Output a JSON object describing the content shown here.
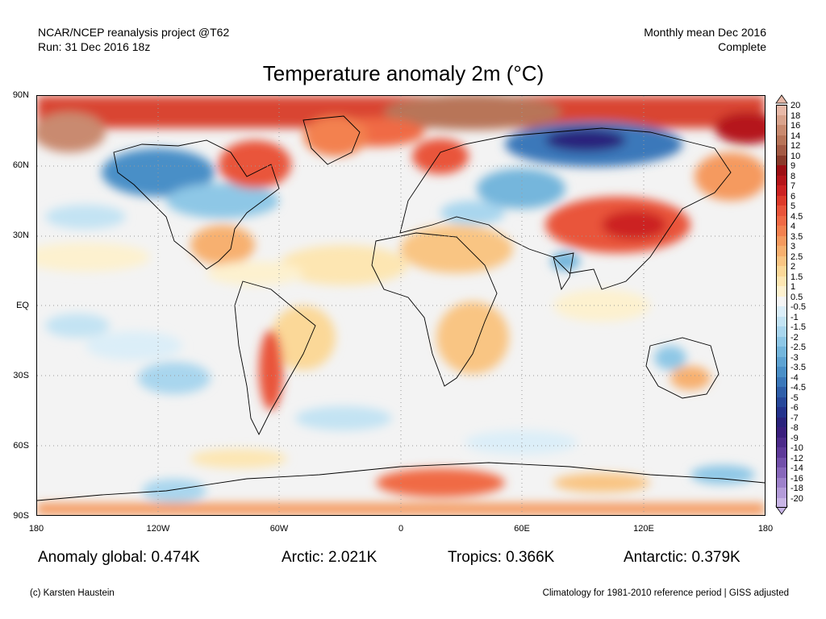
{
  "header": {
    "source": "NCAR/NCEP reanalysis project @T62",
    "run": "Run: 31 Dec 2016 18z",
    "period": "Monthly mean Dec 2016",
    "status": "Complete"
  },
  "title": "Temperature anomaly 2m (°C)",
  "axes": {
    "lat_labels": [
      "90N",
      "60N",
      "30N",
      "EQ",
      "30S",
      "60S",
      "90S"
    ],
    "lon_labels": [
      "180",
      "120W",
      "60W",
      "0",
      "60E",
      "120E",
      "180"
    ]
  },
  "colorbar": {
    "labels": [
      "20",
      "18",
      "16",
      "14",
      "12",
      "10",
      "9",
      "8",
      "7",
      "6",
      "5",
      "4.5",
      "4",
      "3.5",
      "3",
      "2.5",
      "2",
      "1.5",
      "1",
      "0.5",
      "-0.5",
      "-1",
      "-1.5",
      "-2",
      "-2.5",
      "-3",
      "-3.5",
      "-4",
      "-4.5",
      "-5",
      "-6",
      "-7",
      "-8",
      "-9",
      "-10",
      "-12",
      "-14",
      "-16",
      "-18",
      "-20"
    ],
    "colors": [
      "#e8b9a8",
      "#d9a38c",
      "#c98a6f",
      "#b87458",
      "#a45a44",
      "#8a3a2a",
      "#9d0f14",
      "#b5151a",
      "#cc2222",
      "#dd3a2a",
      "#e9543a",
      "#f06a45",
      "#f3814f",
      "#f59a5e",
      "#f7b06f",
      "#f9c583",
      "#fbd898",
      "#fde6b2",
      "#fdf1cf",
      "#f5f5f5",
      "#dbeef8",
      "#c3e3f3",
      "#a9d6ee",
      "#8ec7e6",
      "#74b6dc",
      "#5ea3d2",
      "#4a8fc7",
      "#3b78ba",
      "#2f5fa9",
      "#27489a",
      "#24338c",
      "#2a237c",
      "#3a1f7d",
      "#4c2b8a",
      "#5e3a99",
      "#7250aa",
      "#8868bb",
      "#9e82cb",
      "#b49cd9",
      "#c8b5e6"
    ]
  },
  "stats": {
    "global": "Anomaly global: 0.474K",
    "arctic": "Arctic: 2.021K",
    "tropics": "Tropics: 0.366K",
    "antarctic": "Antarctic: 0.379K"
  },
  "footer": {
    "credit": "(c) Karsten Haustein",
    "note": "Climatology for 1981-2010 reference period | GISS adjusted"
  }
}
